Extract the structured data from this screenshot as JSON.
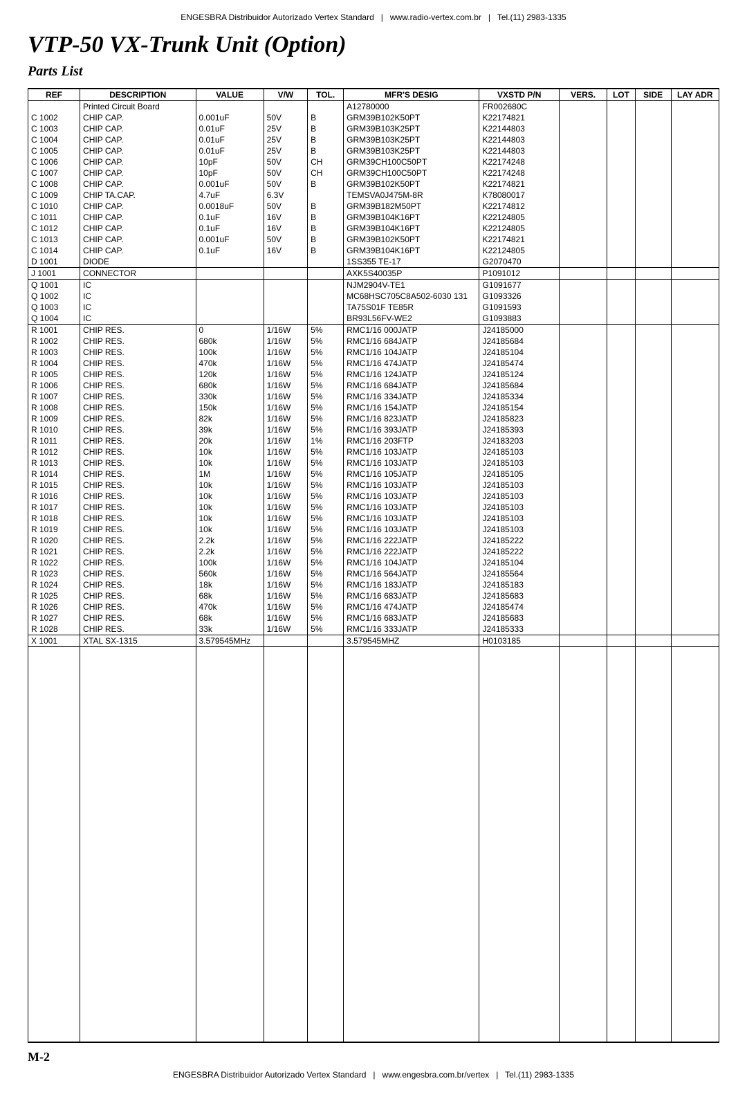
{
  "header": "ENGESBRA Distribuidor Autorizado Vertex Standard   |   www.radio-vertex.com.br   |   Tel.(11) 2983-1335",
  "footer": "ENGESBRA Distribuidor Autorizado Vertex Standard   |   www.engesbra.com.br/vertex   |   Tel.(11) 2983-1335",
  "title": "VTP-50 VX-Trunk Unit (Option)",
  "subtitle": "Parts List",
  "page_num": "M-2",
  "columns": [
    "REF",
    "DESCRIPTION",
    "VALUE",
    "V/W",
    "TOL.",
    "MFR'S DESIG",
    "VXSTD P/N",
    "VERS.",
    "LOT",
    "SIDE",
    "LAY ADR"
  ],
  "sections": [
    {
      "rows": [
        [
          "",
          "Printed Circuit Board",
          "",
          "",
          "",
          "A12780000",
          "FR002680C",
          "",
          "",
          "",
          ""
        ],
        [
          "C 1002",
          "CHIP CAP.",
          "0.001uF",
          "50V",
          "B",
          "GRM39B102K50PT",
          "K22174821",
          "",
          "",
          "",
          ""
        ],
        [
          "C 1003",
          "CHIP CAP.",
          "0.01uF",
          "25V",
          "B",
          "GRM39B103K25PT",
          "K22144803",
          "",
          "",
          "",
          ""
        ],
        [
          "C 1004",
          "CHIP CAP.",
          "0.01uF",
          "25V",
          "B",
          "GRM39B103K25PT",
          "K22144803",
          "",
          "",
          "",
          ""
        ],
        [
          "C 1005",
          "CHIP CAP.",
          "0.01uF",
          "25V",
          "B",
          "GRM39B103K25PT",
          "K22144803",
          "",
          "",
          "",
          ""
        ],
        [
          "C 1006",
          "CHIP CAP.",
          "10pF",
          "50V",
          "CH",
          "GRM39CH100C50PT",
          "K22174248",
          "",
          "",
          "",
          ""
        ],
        [
          "C 1007",
          "CHIP CAP.",
          "10pF",
          "50V",
          "CH",
          "GRM39CH100C50PT",
          "K22174248",
          "",
          "",
          "",
          ""
        ],
        [
          "C 1008",
          "CHIP CAP.",
          "0.001uF",
          "50V",
          "B",
          "GRM39B102K50PT",
          "K22174821",
          "",
          "",
          "",
          ""
        ],
        [
          "C 1009",
          "CHIP TA.CAP.",
          "4.7uF",
          "6.3V",
          "",
          "TEMSVA0J475M-8R",
          "K78080017",
          "",
          "",
          "",
          ""
        ],
        [
          "C 1010",
          "CHIP CAP.",
          "0.0018uF",
          "50V",
          "B",
          "GRM39B182M50PT",
          "K22174812",
          "",
          "",
          "",
          ""
        ],
        [
          "C 1011",
          "CHIP CAP.",
          "0.1uF",
          "16V",
          "B",
          "GRM39B104K16PT",
          "K22124805",
          "",
          "",
          "",
          ""
        ],
        [
          "C 1012",
          "CHIP CAP.",
          "0.1uF",
          "16V",
          "B",
          "GRM39B104K16PT",
          "K22124805",
          "",
          "",
          "",
          ""
        ],
        [
          "C 1013",
          "CHIP CAP.",
          "0.001uF",
          "50V",
          "B",
          "GRM39B102K50PT",
          "K22174821",
          "",
          "",
          "",
          ""
        ],
        [
          "C 1014",
          "CHIP CAP.",
          "0.1uF",
          "16V",
          "B",
          "GRM39B104K16PT",
          "K22124805",
          "",
          "",
          "",
          ""
        ],
        [
          "D 1001",
          "DIODE",
          "",
          "",
          "",
          "1SS355 TE-17",
          "G2070470",
          "",
          "",
          "",
          ""
        ]
      ]
    },
    {
      "rows": [
        [
          "J 1001",
          "CONNECTOR",
          "",
          "",
          "",
          "AXK5S40035P",
          "P1091012",
          "",
          "",
          "",
          ""
        ]
      ]
    },
    {
      "rows": [
        [
          "Q 1001",
          "IC",
          "",
          "",
          "",
          "NJM2904V-TE1",
          "G1091677",
          "",
          "",
          "",
          ""
        ],
        [
          "Q 1002",
          "IC",
          "",
          "",
          "",
          "MC68HSC705C8A502-6030 131",
          "G1093326",
          "",
          "",
          "",
          ""
        ],
        [
          "Q 1003",
          "IC",
          "",
          "",
          "",
          "TA75S01F TE85R",
          "G1091593",
          "",
          "",
          "",
          ""
        ],
        [
          "Q 1004",
          "IC",
          "",
          "",
          "",
          "BR93L56FV-WE2",
          "G1093883",
          "",
          "",
          "",
          ""
        ]
      ]
    },
    {
      "rows": [
        [
          "R 1001",
          "CHIP RES.",
          "0",
          "1/16W",
          "5%",
          "RMC1/16 000JATP",
          "J24185000",
          "",
          "",
          "",
          ""
        ],
        [
          "R 1002",
          "CHIP RES.",
          "680k",
          "1/16W",
          "5%",
          "RMC1/16 684JATP",
          "J24185684",
          "",
          "",
          "",
          ""
        ],
        [
          "R 1003",
          "CHIP RES.",
          "100k",
          "1/16W",
          "5%",
          "RMC1/16 104JATP",
          "J24185104",
          "",
          "",
          "",
          ""
        ],
        [
          "R 1004",
          "CHIP RES.",
          "470k",
          "1/16W",
          "5%",
          "RMC1/16 474JATP",
          "J24185474",
          "",
          "",
          "",
          ""
        ],
        [
          "R 1005",
          "CHIP RES.",
          "120k",
          "1/16W",
          "5%",
          "RMC1/16 124JATP",
          "J24185124",
          "",
          "",
          "",
          ""
        ],
        [
          "R 1006",
          "CHIP RES.",
          "680k",
          "1/16W",
          "5%",
          "RMC1/16 684JATP",
          "J24185684",
          "",
          "",
          "",
          ""
        ],
        [
          "R 1007",
          "CHIP RES.",
          "330k",
          "1/16W",
          "5%",
          "RMC1/16 334JATP",
          "J24185334",
          "",
          "",
          "",
          ""
        ],
        [
          "R 1008",
          "CHIP RES.",
          "150k",
          "1/16W",
          "5%",
          "RMC1/16 154JATP",
          "J24185154",
          "",
          "",
          "",
          ""
        ],
        [
          "R 1009",
          "CHIP RES.",
          "82k",
          "1/16W",
          "5%",
          "RMC1/16 823JATP",
          "J24185823",
          "",
          "",
          "",
          ""
        ],
        [
          "R 1010",
          "CHIP RES.",
          "39k",
          "1/16W",
          "5%",
          "RMC1/16 393JATP",
          "J24185393",
          "",
          "",
          "",
          ""
        ],
        [
          "R 1011",
          "CHIP RES.",
          "20k",
          "1/16W",
          "1%",
          "RMC1/16 203FTP",
          "J24183203",
          "",
          "",
          "",
          ""
        ],
        [
          "R 1012",
          "CHIP RES.",
          "10k",
          "1/16W",
          "5%",
          "RMC1/16 103JATP",
          "J24185103",
          "",
          "",
          "",
          ""
        ],
        [
          "R 1013",
          "CHIP RES.",
          "10k",
          "1/16W",
          "5%",
          "RMC1/16 103JATP",
          "J24185103",
          "",
          "",
          "",
          ""
        ],
        [
          "R 1014",
          "CHIP RES.",
          "1M",
          "1/16W",
          "5%",
          "RMC1/16 105JATP",
          "J24185105",
          "",
          "",
          "",
          ""
        ],
        [
          "R 1015",
          "CHIP RES.",
          "10k",
          "1/16W",
          "5%",
          "RMC1/16 103JATP",
          "J24185103",
          "",
          "",
          "",
          ""
        ],
        [
          "R 1016",
          "CHIP RES.",
          "10k",
          "1/16W",
          "5%",
          "RMC1/16 103JATP",
          "J24185103",
          "",
          "",
          "",
          ""
        ],
        [
          "R 1017",
          "CHIP RES.",
          "10k",
          "1/16W",
          "5%",
          "RMC1/16 103JATP",
          "J24185103",
          "",
          "",
          "",
          ""
        ],
        [
          "R 1018",
          "CHIP RES.",
          "10k",
          "1/16W",
          "5%",
          "RMC1/16 103JATP",
          "J24185103",
          "",
          "",
          "",
          ""
        ],
        [
          "R 1019",
          "CHIP RES.",
          "10k",
          "1/16W",
          "5%",
          "RMC1/16 103JATP",
          "J24185103",
          "",
          "",
          "",
          ""
        ],
        [
          "R 1020",
          "CHIP RES.",
          "2.2k",
          "1/16W",
          "5%",
          "RMC1/16 222JATP",
          "J24185222",
          "",
          "",
          "",
          ""
        ],
        [
          "R 1021",
          "CHIP RES.",
          "2.2k",
          "1/16W",
          "5%",
          "RMC1/16 222JATP",
          "J24185222",
          "",
          "",
          "",
          ""
        ],
        [
          "R 1022",
          "CHIP RES.",
          "100k",
          "1/16W",
          "5%",
          "RMC1/16 104JATP",
          "J24185104",
          "",
          "",
          "",
          ""
        ],
        [
          "R 1023",
          "CHIP RES.",
          "560k",
          "1/16W",
          "5%",
          "RMC1/16 564JATP",
          "J24185564",
          "",
          "",
          "",
          ""
        ],
        [
          "R 1024",
          "CHIP RES.",
          "18k",
          "1/16W",
          "5%",
          "RMC1/16 183JATP",
          "J24185183",
          "",
          "",
          "",
          ""
        ],
        [
          "R 1025",
          "CHIP RES.",
          "68k",
          "1/16W",
          "5%",
          "RMC1/16 683JATP",
          "J24185683",
          "",
          "",
          "",
          ""
        ],
        [
          "R 1026",
          "CHIP RES.",
          "470k",
          "1/16W",
          "5%",
          "RMC1/16 474JATP",
          "J24185474",
          "",
          "",
          "",
          ""
        ],
        [
          "R 1027",
          "CHIP RES.",
          "68k",
          "1/16W",
          "5%",
          "RMC1/16 683JATP",
          "J24185683",
          "",
          "",
          "",
          ""
        ],
        [
          "R 1028",
          "CHIP RES.",
          "33k",
          "1/16W",
          "5%",
          "RMC1/16 333JATP",
          "J24185333",
          "",
          "",
          "",
          ""
        ]
      ]
    },
    {
      "rows": [
        [
          "X 1001",
          "XTAL SX-1315",
          "3.579545MHz",
          "",
          "",
          "3.579545MHZ",
          "H0103185",
          "",
          "",
          "",
          ""
        ]
      ]
    }
  ]
}
